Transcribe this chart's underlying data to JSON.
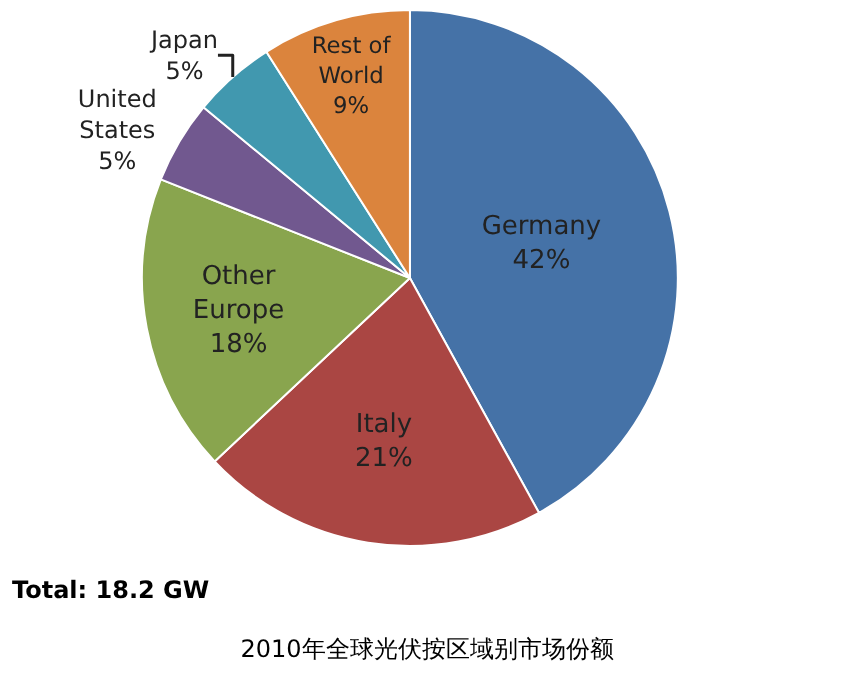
{
  "chart_data": {
    "type": "pie",
    "title": "2010年全球光伏按区域别市场份额",
    "categories": [
      "Germany",
      "Italy",
      "Other Europe",
      "United States",
      "Japan",
      "Rest of World"
    ],
    "values": [
      42,
      21,
      18,
      5,
      5,
      9
    ],
    "value_labels": [
      "42%",
      "21%",
      "18%",
      "5%",
      "5%",
      "9%"
    ],
    "colors": [
      "#4572a7",
      "#aa4643",
      "#89a54e",
      "#71588f",
      "#4198af",
      "#db843d"
    ],
    "legend": false,
    "annotations": [
      "Total: 18.2 GW"
    ]
  }
}
